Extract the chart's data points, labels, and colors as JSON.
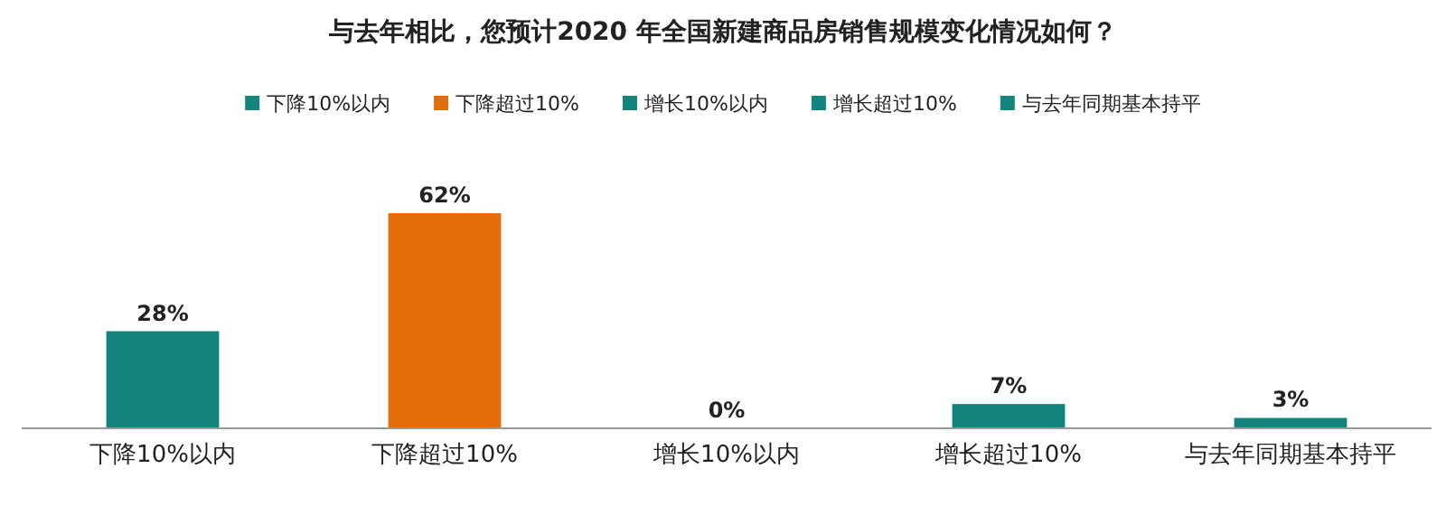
{
  "chart_data": {
    "type": "bar",
    "title": "与去年相比，您预计2020 年全国新建商品房销售规模变化情况如何？",
    "categories": [
      "下降10%以内",
      "下降超过10%",
      "增长10%以内",
      "增长超过10%",
      "与去年同期基本持平"
    ],
    "stacked": true,
    "series": [
      {
        "name": "下降10%以内",
        "color": "#13857e",
        "values": [
          28,
          null,
          null,
          null,
          null
        ],
        "value_labels": [
          "28%",
          null,
          null,
          null,
          null
        ]
      },
      {
        "name": "下降超过10%",
        "color": "#e46c0a",
        "values": [
          null,
          62,
          null,
          null,
          null
        ],
        "value_labels": [
          null,
          "62%",
          null,
          null,
          null
        ]
      },
      {
        "name": "增长10%以内",
        "color": "#13857e",
        "values": [
          null,
          null,
          0,
          null,
          null
        ],
        "value_labels": [
          null,
          null,
          "0%",
          null,
          null
        ]
      },
      {
        "name": "增长超过10%",
        "color": "#13857e",
        "values": [
          null,
          null,
          null,
          7,
          null
        ],
        "value_labels": [
          null,
          null,
          null,
          "7%",
          null
        ]
      },
      {
        "name": "与去年同期基本持平",
        "color": "#13857e",
        "values": [
          null,
          null,
          null,
          null,
          3
        ],
        "value_labels": [
          null,
          null,
          null,
          null,
          "3%"
        ]
      }
    ],
    "legend": "top",
    "grid": false
  }
}
